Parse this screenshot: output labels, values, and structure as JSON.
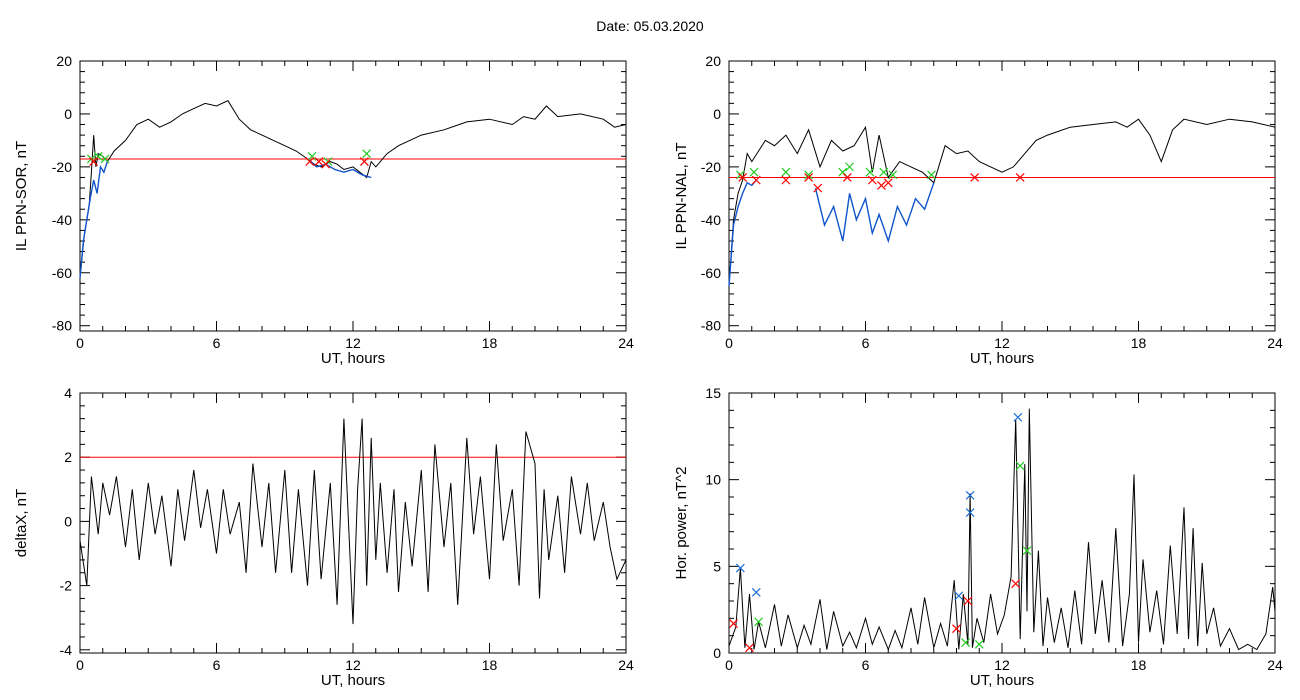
{
  "title": "Date:  05.03.2020",
  "colors": {
    "trace": "#000000",
    "quiet": "#1155cc",
    "threshold": "#ff0000",
    "mark_red": "#ff0000",
    "mark_green": "#22cc22",
    "mark_blue": "#1f6fd6"
  },
  "chart_data": [
    {
      "id": "ppn-sor",
      "type": "line",
      "xlabel": "UT, hours",
      "ylabel": "IL PPN-SOR, nT",
      "xlim": [
        0,
        24
      ],
      "ylim": [
        -82,
        20
      ],
      "xticks": [
        0,
        6,
        12,
        18,
        24
      ],
      "yticks": [
        -80,
        -60,
        -40,
        -20,
        0,
        20
      ],
      "threshold": -17,
      "series": [
        {
          "role": "main",
          "color": "#000000",
          "x": [
            0,
            0.2,
            0.4,
            0.5,
            0.6,
            0.7,
            0.8,
            1,
            1.2,
            1.5,
            2,
            2.5,
            3,
            3.5,
            4,
            4.5,
            5,
            5.5,
            6,
            6.5,
            7,
            7.5,
            8,
            8.5,
            9,
            9.5,
            10,
            10.3,
            10.6,
            11,
            11.3,
            11.6,
            12,
            12.3,
            12.6,
            12.8,
            13,
            13.5,
            14,
            15,
            16,
            17,
            18,
            19,
            19.5,
            20,
            20.5,
            21,
            22,
            23,
            23.5,
            24
          ],
          "y": [
            -62,
            -45,
            -35,
            -22,
            -8,
            -20,
            -15,
            -16,
            -18,
            -14,
            -10,
            -4,
            -2,
            -5,
            -3,
            0,
            2,
            4,
            3,
            5,
            -2,
            -6,
            -8,
            -10,
            -12,
            -14,
            -17,
            -19,
            -20,
            -18,
            -19,
            -21,
            -20,
            -22,
            -24,
            -18,
            -20,
            -15,
            -12,
            -8,
            -6,
            -3,
            -2,
            -4,
            -1,
            -2,
            3,
            -1,
            0,
            -2,
            -5,
            -4
          ]
        },
        {
          "role": "quiet",
          "color": "#1155cc",
          "x": [
            0,
            0.15,
            0.3,
            0.45,
            0.6,
            0.75,
            0.9,
            1.05,
            1.2
          ],
          "y": [
            -62,
            -48,
            -40,
            -32,
            -25,
            -30,
            -20,
            -22,
            -18
          ]
        },
        {
          "role": "quiet",
          "color": "#1155cc",
          "x": [
            10,
            10.4,
            10.8,
            11.2,
            11.6,
            12,
            12.4,
            12.8
          ],
          "y": [
            -17,
            -20,
            -19,
            -21,
            -22,
            -21,
            -23,
            -24
          ]
        }
      ],
      "markers": [
        {
          "color": "#22cc22",
          "points": [
            [
              0.5,
              -17
            ],
            [
              0.8,
              -16
            ],
            [
              1.1,
              -17
            ],
            [
              10.2,
              -16
            ],
            [
              10.9,
              -18
            ],
            [
              12.6,
              -15
            ]
          ]
        },
        {
          "color": "#ff0000",
          "points": [
            [
              0.6,
              -18
            ],
            [
              10.1,
              -18
            ],
            [
              10.5,
              -18
            ],
            [
              10.8,
              -19
            ],
            [
              12.5,
              -18
            ]
          ]
        }
      ]
    },
    {
      "id": "ppn-nal",
      "type": "line",
      "xlabel": "UT, hours",
      "ylabel": "IL PPN-NAL, nT",
      "xlim": [
        0,
        24
      ],
      "ylim": [
        -82,
        20
      ],
      "xticks": [
        0,
        6,
        12,
        18,
        24
      ],
      "yticks": [
        -80,
        -60,
        -40,
        -20,
        0,
        20
      ],
      "threshold": -24,
      "series": [
        {
          "role": "main",
          "color": "#000000",
          "x": [
            0,
            0.2,
            0.4,
            0.6,
            0.8,
            1,
            1.3,
            1.6,
            2,
            2.5,
            3,
            3.5,
            4,
            4.5,
            5,
            5.5,
            6,
            6.3,
            6.6,
            7,
            7.5,
            8,
            8.5,
            9,
            9.5,
            10,
            10.5,
            11,
            12,
            12.5,
            13,
            13.5,
            14,
            15,
            16,
            17,
            17.5,
            18,
            18.5,
            19,
            19.5,
            20,
            21,
            22,
            23,
            24
          ],
          "y": [
            -65,
            -40,
            -30,
            -25,
            -15,
            -18,
            -14,
            -10,
            -12,
            -8,
            -15,
            -6,
            -20,
            -10,
            -14,
            -12,
            -5,
            -22,
            -8,
            -24,
            -18,
            -20,
            -22,
            -26,
            -12,
            -15,
            -14,
            -18,
            -22,
            -20,
            -15,
            -10,
            -8,
            -5,
            -4,
            -3,
            -5,
            -2,
            -8,
            -18,
            -6,
            -2,
            -4,
            -2,
            -3,
            -5
          ]
        },
        {
          "role": "quiet",
          "color": "#1155cc",
          "x": [
            0,
            0.2,
            0.4,
            0.6,
            0.8,
            1,
            1.2
          ],
          "y": [
            -65,
            -42,
            -35,
            -30,
            -26,
            -27,
            -25
          ]
        },
        {
          "role": "quiet",
          "color": "#1155cc",
          "x": [
            3.8,
            4.2,
            4.6,
            5,
            5.3,
            5.6,
            6,
            6.3,
            6.6,
            7,
            7.4,
            7.8,
            8.2,
            8.6,
            9
          ],
          "y": [
            -28,
            -42,
            -35,
            -48,
            -30,
            -40,
            -32,
            -45,
            -38,
            -48,
            -35,
            -42,
            -32,
            -36,
            -26
          ]
        }
      ],
      "markers": [
        {
          "color": "#22cc22",
          "points": [
            [
              0.5,
              -23
            ],
            [
              1.1,
              -22
            ],
            [
              2.5,
              -22
            ],
            [
              3.5,
              -23
            ],
            [
              5,
              -22
            ],
            [
              5.3,
              -20
            ],
            [
              6.2,
              -22
            ],
            [
              6.8,
              -22
            ],
            [
              7.2,
              -23
            ],
            [
              8.9,
              -23
            ]
          ]
        },
        {
          "color": "#ff0000",
          "points": [
            [
              0.6,
              -24
            ],
            [
              1.2,
              -25
            ],
            [
              2.5,
              -25
            ],
            [
              3.5,
              -24
            ],
            [
              3.9,
              -28
            ],
            [
              5.2,
              -24
            ],
            [
              6.3,
              -25
            ],
            [
              6.7,
              -27
            ],
            [
              7,
              -26
            ],
            [
              10.8,
              -24
            ],
            [
              12.8,
              -24
            ]
          ]
        }
      ]
    },
    {
      "id": "deltax",
      "type": "line",
      "xlabel": "UT, hours",
      "ylabel": "deltaX, nT",
      "xlim": [
        0,
        24
      ],
      "ylim": [
        -4.1,
        4
      ],
      "xticks": [
        0,
        6,
        12,
        18,
        24
      ],
      "yticks": [
        -4,
        -2,
        0,
        2,
        4
      ],
      "threshold": 2,
      "series": [
        {
          "role": "main",
          "color": "#000000",
          "x": [
            0,
            0.3,
            0.5,
            0.8,
            1,
            1.3,
            1.6,
            2,
            2.3,
            2.6,
            3,
            3.3,
            3.6,
            4,
            4.3,
            4.6,
            5,
            5.3,
            5.6,
            6,
            6.3,
            6.6,
            7,
            7.3,
            7.6,
            8,
            8.3,
            8.6,
            9,
            9.3,
            9.6,
            10,
            10.3,
            10.6,
            11,
            11.3,
            11.6,
            12,
            12.2,
            12.4,
            12.6,
            12.8,
            13,
            13.2,
            13.5,
            13.8,
            14,
            14.3,
            14.6,
            15,
            15.3,
            15.6,
            16,
            16.3,
            16.6,
            17,
            17.3,
            17.6,
            18,
            18.3,
            18.6,
            19,
            19.3,
            19.6,
            20,
            20.2,
            20.4,
            20.6,
            21,
            21.3,
            21.6,
            22,
            22.3,
            22.6,
            23,
            23.3,
            23.6,
            24
          ],
          "y": [
            -0.6,
            -2,
            1.4,
            -0.4,
            1.2,
            0.2,
            1.4,
            -0.8,
            1,
            -1.2,
            1.2,
            -0.4,
            0.8,
            -1.4,
            1,
            -0.6,
            1.6,
            -0.2,
            1,
            -1,
            1,
            -0.4,
            0.6,
            -1.6,
            1.8,
            -0.8,
            1.2,
            -1.6,
            1.6,
            -1.6,
            1,
            -2,
            1.6,
            -1.8,
            1.2,
            -2.6,
            3.2,
            -3.2,
            1,
            3.2,
            -2,
            2.6,
            -1.2,
            1.2,
            -1.6,
            1,
            -2.2,
            0.6,
            -1.4,
            1.6,
            -2.2,
            2.4,
            -0.8,
            1.2,
            -2.6,
            2.6,
            -0.4,
            1.4,
            -1.8,
            2.4,
            -0.6,
            1,
            -2,
            2.8,
            1.8,
            -2.4,
            1,
            -1.2,
            0.8,
            -1.6,
            1.4,
            -0.4,
            1.2,
            -0.6,
            0.6,
            -0.8,
            -1.8,
            -1.2
          ]
        }
      ],
      "markers": []
    },
    {
      "id": "hor-power",
      "type": "line",
      "xlabel": "UT, hours",
      "ylabel": "Hor. power, nT^2",
      "xlim": [
        0,
        24
      ],
      "ylim": [
        0,
        15
      ],
      "xticks": [
        0,
        6,
        12,
        18,
        24
      ],
      "yticks": [
        0,
        5,
        10,
        15
      ],
      "threshold": null,
      "series": [
        {
          "role": "main",
          "color": "#000000",
          "x": [
            0,
            0.3,
            0.5,
            0.7,
            0.9,
            1.1,
            1.3,
            1.6,
            2,
            2.3,
            2.6,
            3,
            3.3,
            3.6,
            4,
            4.3,
            4.6,
            5,
            5.3,
            5.6,
            6,
            6.3,
            6.6,
            7,
            7.3,
            7.6,
            8,
            8.3,
            8.6,
            9,
            9.3,
            9.6,
            9.9,
            10.1,
            10.3,
            10.5,
            10.6,
            10.7,
            10.9,
            11.2,
            11.5,
            11.8,
            12.1,
            12.4,
            12.6,
            12.8,
            13,
            13.1,
            13.2,
            13.4,
            13.6,
            13.8,
            14,
            14.3,
            14.6,
            14.9,
            15.2,
            15.5,
            15.8,
            16.1,
            16.4,
            16.7,
            17,
            17.3,
            17.6,
            17.8,
            18,
            18.2,
            18.5,
            18.8,
            19.1,
            19.4,
            19.7,
            20,
            20.2,
            20.4,
            20.6,
            20.8,
            21,
            21.3,
            21.6,
            22,
            22.4,
            22.8,
            23.2,
            23.6,
            23.9,
            24
          ],
          "y": [
            0.4,
            1.5,
            4.9,
            0.3,
            3.4,
            0.2,
            1.8,
            0.3,
            2.8,
            0.4,
            2.2,
            0.3,
            1.6,
            0.5,
            3.1,
            0.2,
            2.4,
            0.4,
            1.2,
            0.3,
            2,
            0.5,
            1.5,
            0.2,
            1.3,
            0.3,
            2.6,
            0.5,
            3.2,
            0.3,
            1.7,
            0.4,
            4.2,
            0.2,
            3.4,
            0.5,
            9.2,
            0.3,
            2,
            0.6,
            3.4,
            1.1,
            2.2,
            4.4,
            13.5,
            0.8,
            10.9,
            2.4,
            14.1,
            1.2,
            5.9,
            0.4,
            3.2,
            0.6,
            2.6,
            0.3,
            3.6,
            0.5,
            6.4,
            1.1,
            4.2,
            0.6,
            7.2,
            0.4,
            3.4,
            10.3,
            0.6,
            5.4,
            1.2,
            3.6,
            0.5,
            6.2,
            1.1,
            8.4,
            0.8,
            7.2,
            0.4,
            5.2,
            1.1,
            2.6,
            0.4,
            1.4,
            0.2,
            0.5,
            0.2,
            1.1,
            3.8,
            2.4
          ]
        }
      ],
      "markers": [
        {
          "color": "#1f6fd6",
          "points": [
            [
              0.5,
              4.9
            ],
            [
              1.2,
              3.5
            ],
            [
              10.1,
              3.3
            ],
            [
              10.6,
              9.1
            ],
            [
              10.6,
              8.1
            ],
            [
              12.7,
              13.6
            ]
          ]
        },
        {
          "color": "#22cc22",
          "points": [
            [
              1.3,
              1.8
            ],
            [
              10.4,
              0.6
            ],
            [
              12.8,
              10.8
            ],
            [
              13.1,
              5.9
            ],
            [
              11,
              0.5
            ]
          ]
        },
        {
          "color": "#ff0000",
          "points": [
            [
              0.2,
              1.7
            ],
            [
              0.9,
              0.3
            ],
            [
              10,
              1.4
            ],
            [
              10.5,
              3
            ],
            [
              12.6,
              4
            ]
          ]
        }
      ]
    }
  ]
}
